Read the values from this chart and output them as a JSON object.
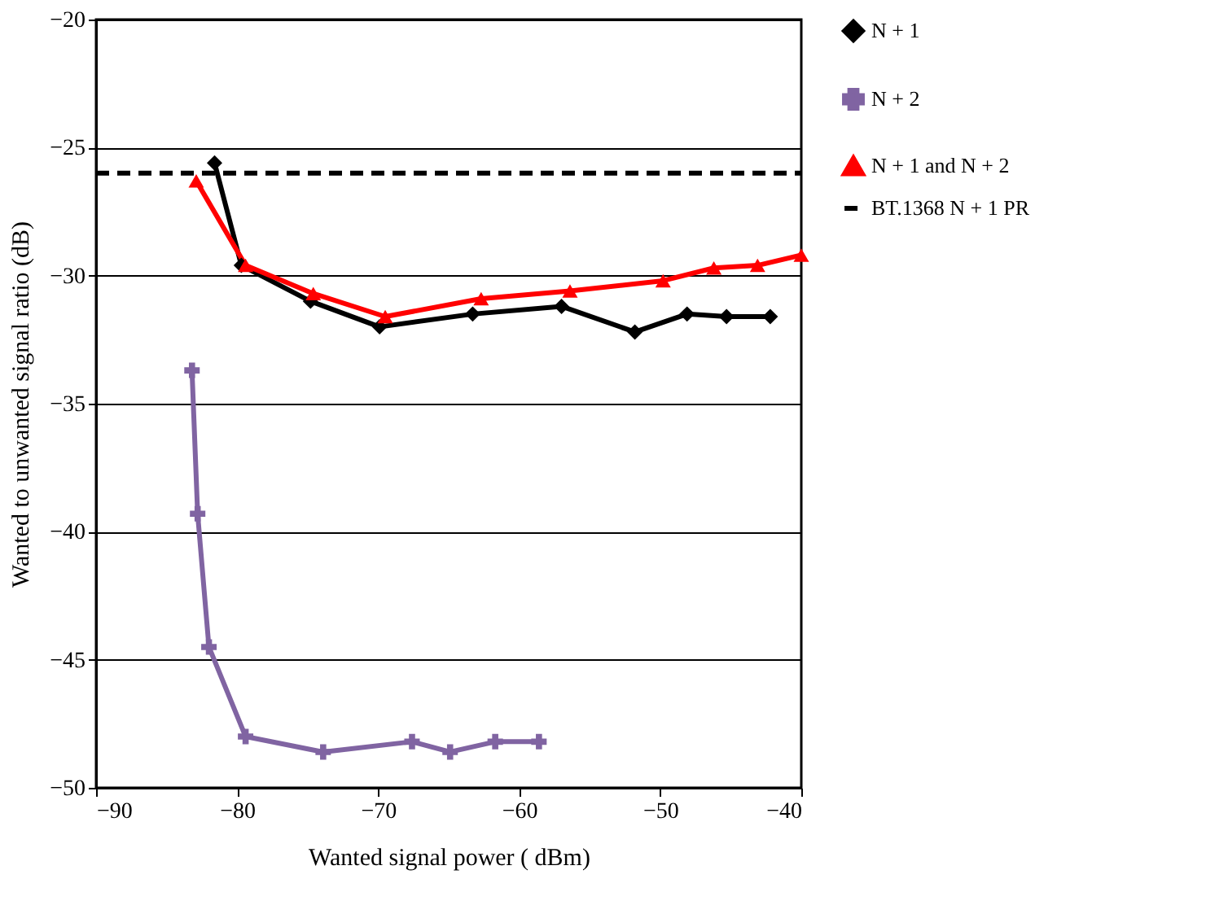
{
  "chart_data": {
    "type": "line",
    "xlabel": "Wanted signal power (   dBm)",
    "ylabel": "Wanted to unwanted signal ratio (dB)",
    "xlim": [
      -90,
      -40
    ],
    "xticks": [
      -90,
      -80,
      -70,
      -60,
      -50,
      -40
    ],
    "ylim": [
      -50,
      -20
    ],
    "yticks": [
      -50,
      -45,
      -40,
      -35,
      -30,
      -25,
      -20
    ],
    "grid": "y",
    "legend": "right",
    "line_style": "solid",
    "series": [
      {
        "name": "N + 1",
        "color": "#000000",
        "marker": "diamond",
        "x": [
          -81.6,
          -79.7,
          -74.8,
          -69.9,
          -63.3,
          -57.0,
          -51.8,
          -48.1,
          -45.3,
          -42.2
        ],
        "values": [
          -25.6,
          -29.6,
          -31.0,
          -32.0,
          -31.5,
          -31.2,
          -32.2,
          -31.5,
          -31.6,
          -31.6
        ]
      },
      {
        "name": "N + 2",
        "color": "#8064a2",
        "marker": "cross",
        "x": [
          -83.2,
          -82.8,
          -82.0,
          -79.4,
          -73.9,
          -67.6,
          -64.9,
          -61.7,
          -58.6
        ],
        "values": [
          -33.7,
          -39.3,
          -44.5,
          -48.0,
          -48.6,
          -48.2,
          -48.6,
          -48.2,
          -48.2
        ]
      },
      {
        "name": "N + 1 and N + 2",
        "color": "#ff0000",
        "marker": "triangle",
        "x": [
          -82.9,
          -79.4,
          -74.6,
          -69.5,
          -62.7,
          -56.4,
          -49.8,
          -46.2,
          -43.1,
          -40.0
        ],
        "values": [
          -26.3,
          -29.6,
          -30.7,
          -31.6,
          -30.9,
          -30.6,
          -30.2,
          -29.7,
          -29.6,
          -29.2
        ]
      }
    ],
    "ref_lines": [
      {
        "axis": "y",
        "value": -26,
        "label": "BT.1368 N + 1 PR",
        "color": "#000000",
        "line_style": "dashed"
      }
    ]
  }
}
